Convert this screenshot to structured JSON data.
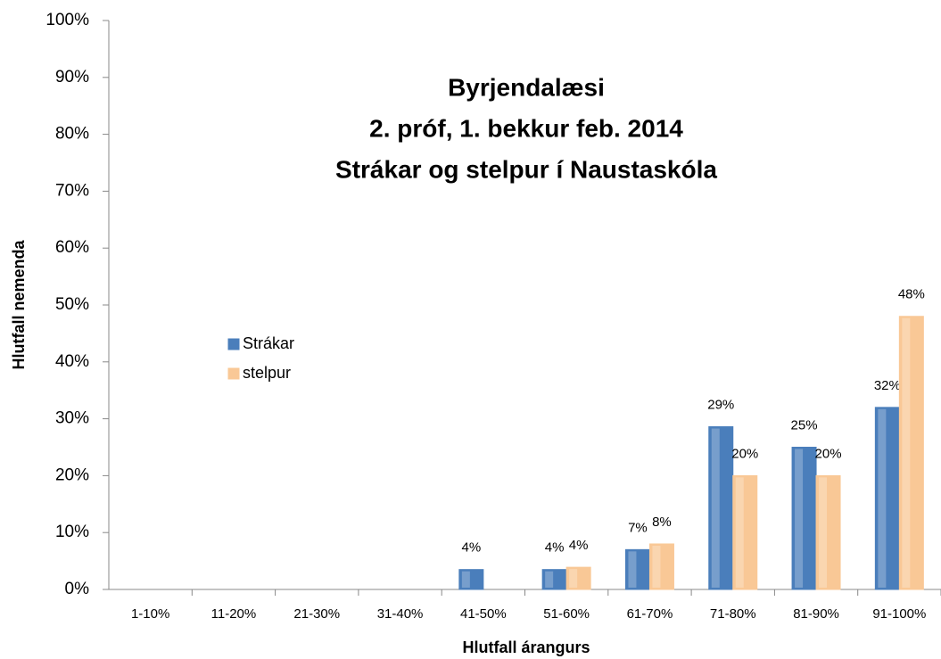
{
  "chart_data": {
    "type": "bar",
    "title": [
      "Byrjendalæsi",
      "2. próf, 1. bekkur feb. 2014",
      "Strákar og stelpur í Naustaskóla"
    ],
    "x_label": "Hlutfall árangurs",
    "y_label": "Hlutfall nemenda",
    "categories": [
      "1-10%",
      "11-20%",
      "21-30%",
      "31-40%",
      "41-50%",
      "51-60%",
      "61-70%",
      "71-80%",
      "81-90%",
      "91-100%"
    ],
    "series": [
      {
        "name": "Strákar",
        "color": "#4a7ebb",
        "values": [
          null,
          null,
          null,
          null,
          3.5,
          3.5,
          7,
          28.6,
          25,
          32
        ],
        "value_labels": [
          null,
          null,
          null,
          null,
          "4%",
          "4%",
          "7%",
          "29%",
          "25%",
          "32%"
        ]
      },
      {
        "name": "stelpur",
        "color": "#f9c896",
        "values": [
          null,
          null,
          null,
          null,
          null,
          3.9,
          8,
          20,
          20,
          48
        ],
        "value_labels": [
          null,
          null,
          null,
          null,
          null,
          "4%",
          "8%",
          "20%",
          "20%",
          "48%"
        ]
      }
    ],
    "ylim": [
      0,
      100
    ],
    "yticks": [
      {
        "value": 0,
        "label": "0%"
      },
      {
        "value": 10,
        "label": "10%"
      },
      {
        "value": 20,
        "label": "20%"
      },
      {
        "value": 30,
        "label": "30%"
      },
      {
        "value": 40,
        "label": "40%"
      },
      {
        "value": 50,
        "label": "50%"
      },
      {
        "value": 60,
        "label": "60%"
      },
      {
        "value": 70,
        "label": "70%"
      },
      {
        "value": 80,
        "label": "80%"
      },
      {
        "value": 90,
        "label": "90%"
      },
      {
        "value": 100,
        "label": "100%"
      }
    ],
    "legend": "left"
  }
}
